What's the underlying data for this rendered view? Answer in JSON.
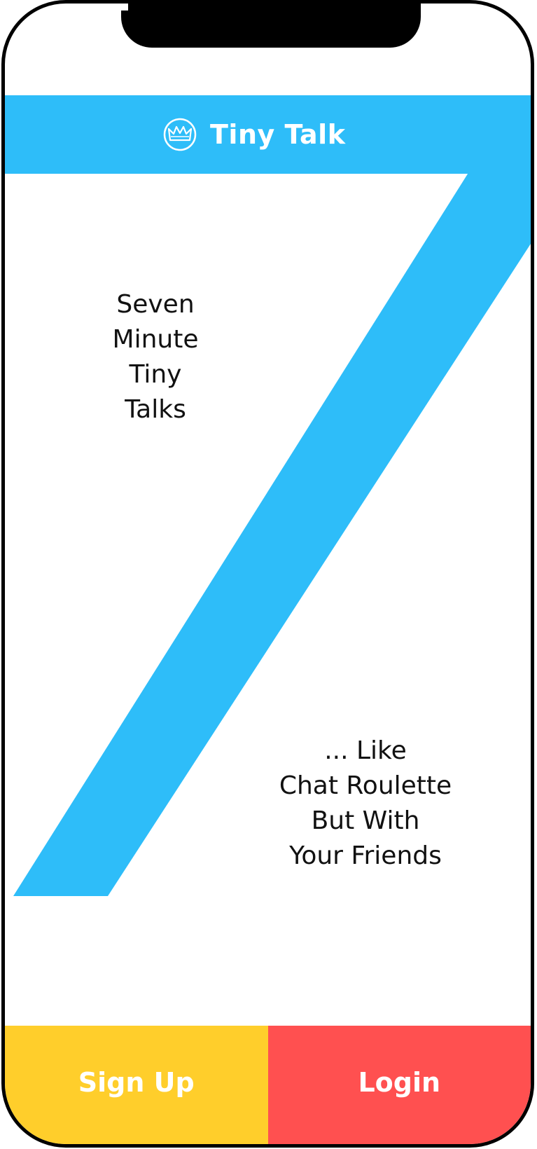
{
  "app": {
    "title": "Tiny Talk",
    "logo_icon": "crown-icon"
  },
  "hero": {
    "tagline_top": [
      "Seven",
      "Minute",
      "Tiny",
      "Talks"
    ],
    "tagline_bottom": [
      "... Like",
      "Chat Roulette",
      "But With",
      "Your Friends"
    ],
    "graphic": "large-number-seven"
  },
  "actions": {
    "signup_label": "Sign Up",
    "login_label": "Login"
  },
  "colors": {
    "brand_blue": "#2EBDF9",
    "signup_yellow": "#FFCE2B",
    "login_red": "#FF5050",
    "text": "#111111",
    "frame": "#000000"
  }
}
